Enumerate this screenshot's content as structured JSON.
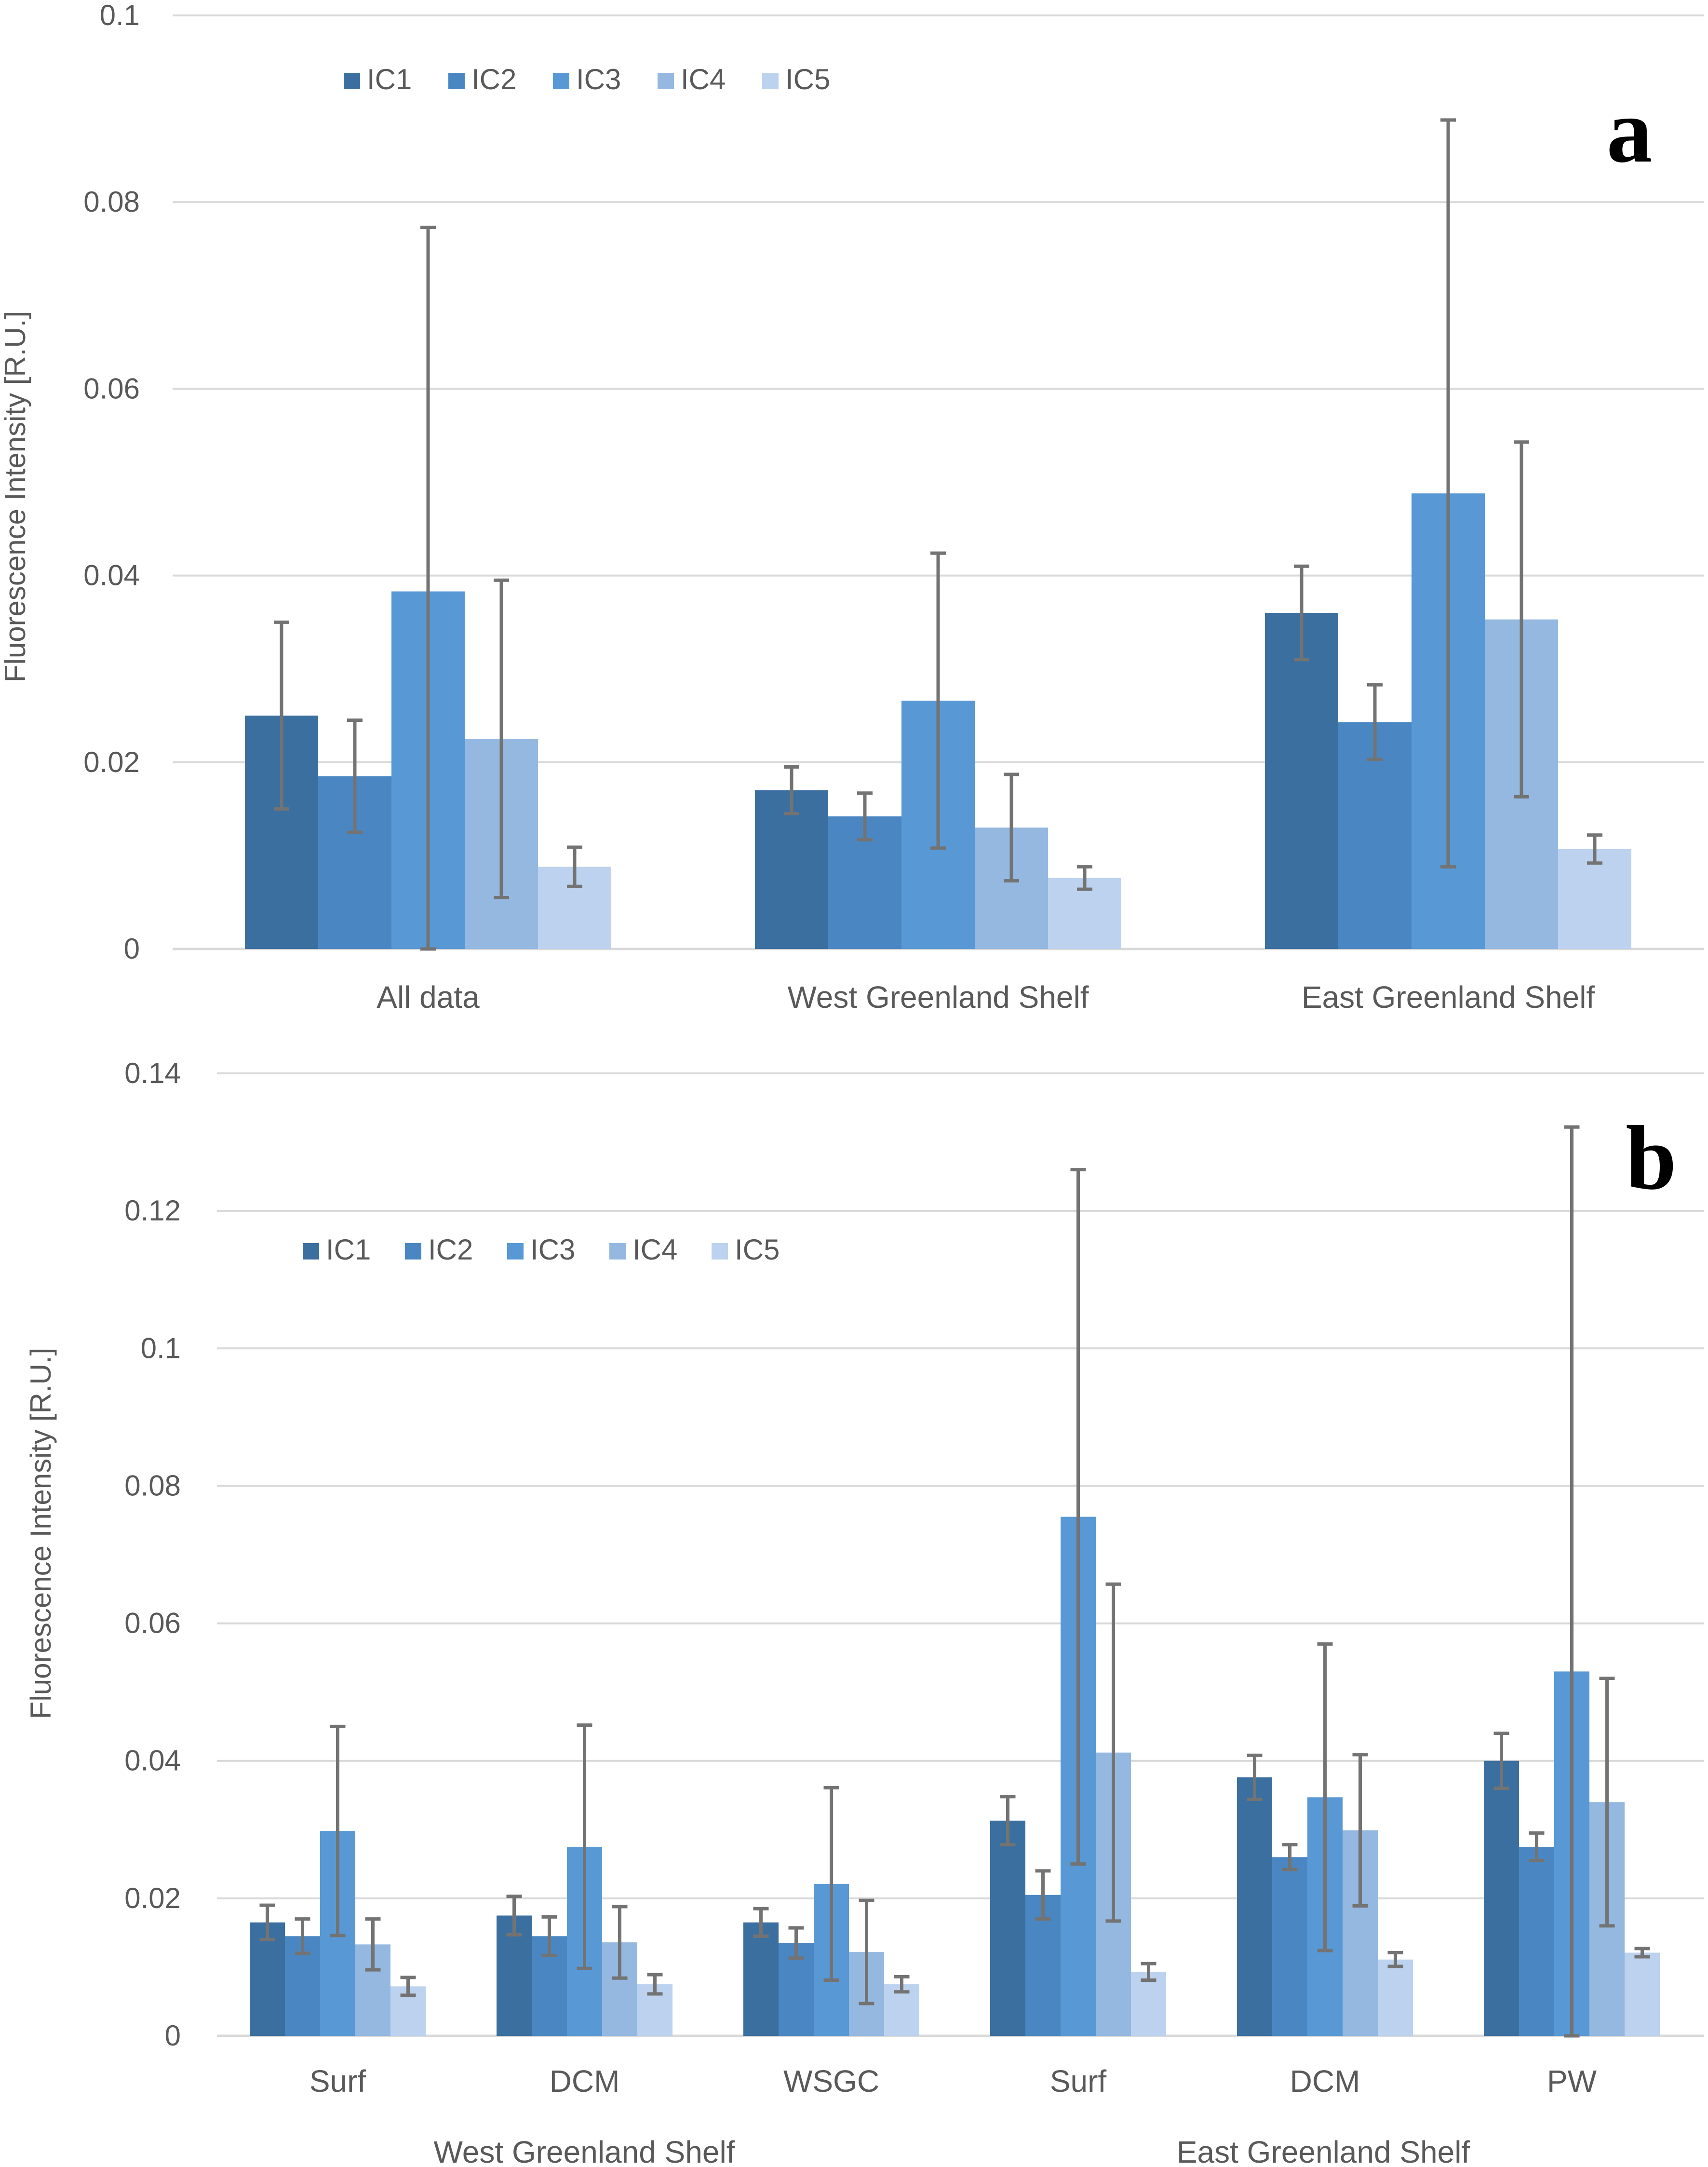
{
  "series_names": [
    "IC1",
    "IC2",
    "IC3",
    "IC4",
    "IC5"
  ],
  "colors": [
    "#3a6f9f",
    "#4a87c2",
    "#5899d5",
    "#94b8e0",
    "#bcd2ee"
  ],
  "error_bar_color": "#737373",
  "chart_data": [
    {
      "type": "bar",
      "panel_label": "a",
      "title": "",
      "xlabel": "",
      "ylabel": "Fluorescence Intensity [R.U.]",
      "ylim": [
        0,
        0.1
      ],
      "yticks": [
        0,
        0.02,
        0.04,
        0.06,
        0.08,
        0.1
      ],
      "ytick_labels": [
        "0",
        "0.02",
        "0.04",
        "0.06",
        "0.08",
        "0.1"
      ],
      "categories": [
        "All data",
        "West Greenland Shelf",
        "East Greenland Shelf"
      ],
      "series": [
        {
          "name": "IC1",
          "values": [
            0.025,
            0.017,
            0.036
          ],
          "errors": [
            0.01,
            0.0025,
            0.005
          ]
        },
        {
          "name": "IC2",
          "values": [
            0.0185,
            0.0142,
            0.0243
          ],
          "errors": [
            0.006,
            0.0025,
            0.004
          ]
        },
        {
          "name": "IC3",
          "values": [
            0.0383,
            0.0266,
            0.0488
          ],
          "errors": [
            0.039,
            0.0158,
            0.04
          ]
        },
        {
          "name": "IC4",
          "values": [
            0.0225,
            0.013,
            0.0353
          ],
          "errors": [
            0.017,
            0.0057,
            0.019
          ]
        },
        {
          "name": "IC5",
          "values": [
            0.0088,
            0.0076,
            0.0107
          ],
          "errors": [
            0.0021,
            0.0012,
            0.0015
          ]
        }
      ],
      "legend": "top-left"
    },
    {
      "type": "bar",
      "panel_label": "b",
      "title": "",
      "xlabel": "",
      "ylabel": "Fluorescence Intensity  [R.U.]",
      "ylim": [
        0,
        0.14
      ],
      "yticks": [
        0,
        0.02,
        0.04,
        0.06,
        0.08,
        0.1,
        0.12,
        0.14
      ],
      "ytick_labels": [
        "0",
        "0.02",
        "0.04",
        "0.06",
        "0.08",
        "0.1",
        "0.12",
        "0.14"
      ],
      "categories": [
        "Surf",
        "DCM",
        "WSGC",
        "Surf",
        "DCM",
        "PW"
      ],
      "category_groups": [
        {
          "label": "West Greenland Shelf",
          "categories": [
            0,
            1,
            2
          ]
        },
        {
          "label": "East Greenland Shelf",
          "categories": [
            3,
            4,
            5
          ]
        }
      ],
      "series": [
        {
          "name": "IC1",
          "values": [
            0.0165,
            0.0175,
            0.0165,
            0.0313,
            0.0376,
            0.04
          ],
          "errors": [
            0.0025,
            0.0028,
            0.002,
            0.0035,
            0.0032,
            0.004
          ]
        },
        {
          "name": "IC2",
          "values": [
            0.0145,
            0.0145,
            0.0135,
            0.0205,
            0.026,
            0.0275
          ],
          "errors": [
            0.0025,
            0.0028,
            0.0022,
            0.0035,
            0.0018,
            0.002
          ]
        },
        {
          "name": "IC3",
          "values": [
            0.0298,
            0.0275,
            0.0221,
            0.0755,
            0.0347,
            0.053
          ],
          "errors": [
            0.0152,
            0.0177,
            0.014,
            0.0505,
            0.0223,
            0.0792
          ]
        },
        {
          "name": "IC4",
          "values": [
            0.0133,
            0.0136,
            0.0122,
            0.0412,
            0.0299,
            0.034
          ],
          "errors": [
            0.0037,
            0.0052,
            0.0075,
            0.0245,
            0.011,
            0.018
          ]
        },
        {
          "name": "IC5",
          "values": [
            0.0072,
            0.0075,
            0.0075,
            0.0093,
            0.0111,
            0.0121
          ],
          "errors": [
            0.0013,
            0.0014,
            0.0011,
            0.0012,
            0.001,
            0.0006
          ]
        }
      ],
      "legend": "top-left"
    }
  ]
}
